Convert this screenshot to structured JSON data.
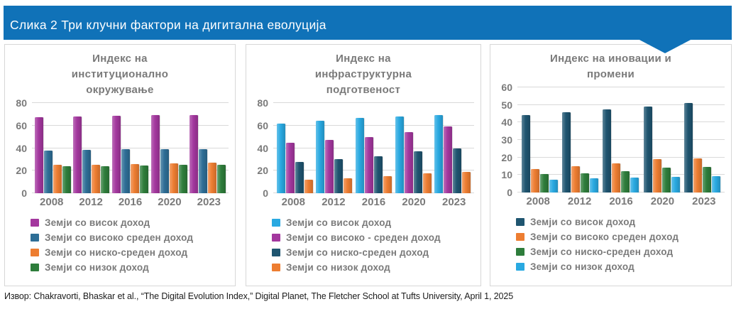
{
  "header": {
    "title": "Слика 2 Три клучни фактори на дигитална еволуција",
    "background": "#1072B8",
    "pointer_icon": "down-triangle"
  },
  "colors": {
    "header_blue": "#1072B8",
    "panel_border": "#d7d7d7",
    "text_gray": "#7a7a7a",
    "gridline": "#d9d9d9"
  },
  "source_line": "Извор: Chakravorti, Bhaskar et al., “The Digital Evolution  Index,” Digital Planet, The Fletcher School at Tufts University,  April 1, 2025",
  "chart_data": [
    {
      "type": "bar",
      "title": "Индекс на институционално окружување",
      "categories": [
        "2008",
        "2012",
        "2016",
        "2020",
        "2023"
      ],
      "ylim": [
        0,
        80
      ],
      "ytick": 20,
      "grid": true,
      "legend_position": "bottom-left",
      "series": [
        {
          "name": "Земји со висок доход",
          "color": "#A3379E",
          "values": [
            67.5,
            68,
            68.5,
            69,
            69.5
          ]
        },
        {
          "name": "Земји со високо среден доход",
          "color": "#2E6E96",
          "values": [
            38,
            38.5,
            39,
            39,
            39
          ]
        },
        {
          "name": "Земји со ниско-среден доход",
          "color": "#ED7D31",
          "values": [
            25,
            25.5,
            26,
            26.5,
            27
          ]
        },
        {
          "name": "Земји со низок доход",
          "color": "#2E7D3B",
          "values": [
            24,
            24,
            24.5,
            25,
            25
          ]
        }
      ]
    },
    {
      "type": "bar",
      "title": "Индекс на инфраструктурна подготвеност",
      "categories": [
        "2008",
        "2012",
        "2016",
        "2020",
        "2023"
      ],
      "ylim": [
        0,
        80
      ],
      "ytick": 20,
      "grid": true,
      "legend_position": "bottom-left",
      "series": [
        {
          "name": "Земји со висок доход",
          "color": "#29A9E1",
          "values": [
            62,
            64,
            66.5,
            68,
            69.5
          ]
        },
        {
          "name": "Земји со високо - среден доход",
          "color": "#A3379E",
          "values": [
            45,
            47,
            50,
            54,
            59
          ]
        },
        {
          "name": "Земји со ниско-среден доход",
          "color": "#1F5570",
          "values": [
            28,
            30.5,
            33,
            37,
            39.5
          ]
        },
        {
          "name": "Земји со низок доход",
          "color": "#ED7D31",
          "values": [
            12,
            13.5,
            15,
            17.5,
            19
          ]
        }
      ]
    },
    {
      "type": "bar",
      "title": "Индекс на иновации и промени",
      "categories": [
        "2008",
        "2012",
        "2016",
        "2020",
        "2023"
      ],
      "ylim": [
        0,
        60
      ],
      "ytick": 10,
      "grid": true,
      "legend_position": "bottom-left",
      "series": [
        {
          "name": "Земји со висок доход",
          "color": "#1F5570",
          "values": [
            44,
            46,
            47.5,
            49,
            51
          ]
        },
        {
          "name": "Земји со високо среден доход",
          "color": "#ED7D31",
          "values": [
            13.5,
            15,
            16.5,
            19,
            19.5
          ]
        },
        {
          "name": "Земји со ниско-среден доход",
          "color": "#2E7D3B",
          "values": [
            10.5,
            11,
            12,
            14,
            14.5
          ]
        },
        {
          "name": "Земји со низок доход",
          "color": "#29A9E1",
          "values": [
            7.5,
            8,
            8.5,
            9,
            9.5
          ]
        }
      ]
    }
  ]
}
